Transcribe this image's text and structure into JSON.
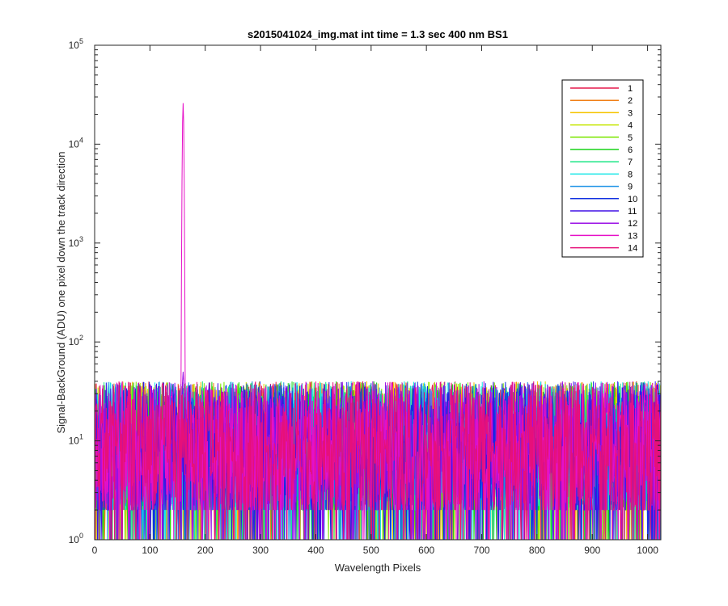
{
  "chart_data": {
    "type": "line",
    "title": "s2015041024_img.mat int time = 1.3 sec  400 nm BS1",
    "xlabel": "Wavelength Pixels",
    "ylabel": "Signal-BackGround (ADU) one pixel down the track direction",
    "xlim": [
      0,
      1024
    ],
    "ylim": [
      1,
      100000
    ],
    "yscale": "log",
    "x_ticks": [
      "0",
      "100",
      "200",
      "300",
      "400",
      "500",
      "600",
      "700",
      "800",
      "900",
      "1000"
    ],
    "y_ticks": [
      {
        "base": "10",
        "exp": "0"
      },
      {
        "base": "10",
        "exp": "1"
      },
      {
        "base": "10",
        "exp": "2"
      },
      {
        "base": "10",
        "exp": "3"
      },
      {
        "base": "10",
        "exp": "4"
      },
      {
        "base": "10",
        "exp": "5"
      }
    ],
    "grid": false,
    "legend_position": "top-right",
    "noise_floor_typical": [
      2,
      40
    ],
    "peak": {
      "x": 160,
      "y": 26000,
      "series": "13"
    },
    "secondary_peak": {
      "x": 160,
      "y": 50,
      "series": "12"
    },
    "series": [
      {
        "name": "1",
        "color": "#e6194b"
      },
      {
        "name": "2",
        "color": "#f07f16"
      },
      {
        "name": "3",
        "color": "#f5c400"
      },
      {
        "name": "4",
        "color": "#c4e600"
      },
      {
        "name": "5",
        "color": "#7be600"
      },
      {
        "name": "6",
        "color": "#19d419"
      },
      {
        "name": "7",
        "color": "#19e685"
      },
      {
        "name": "8",
        "color": "#19e6e6"
      },
      {
        "name": "9",
        "color": "#1990e6"
      },
      {
        "name": "10",
        "color": "#1030e0"
      },
      {
        "name": "11",
        "color": "#4010e6"
      },
      {
        "name": "12",
        "color": "#9b10e6"
      },
      {
        "name": "13",
        "color": "#e610c8"
      },
      {
        "name": "14",
        "color": "#e6107a"
      }
    ]
  }
}
